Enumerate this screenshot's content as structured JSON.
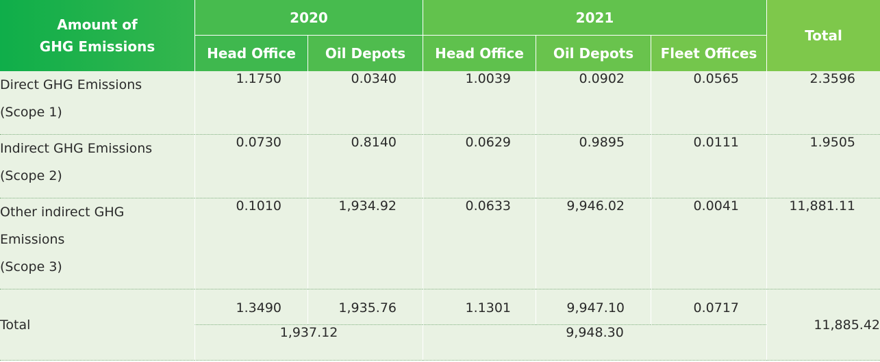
{
  "header": {
    "row_label": "Amount of\nGHG Emissions",
    "row_label_line1": "Amount of",
    "row_label_line2": "GHG Emissions",
    "year_2020": "2020",
    "year_2021": "2021",
    "total": "Total",
    "sub_2020": [
      "Head Office",
      "Oil Depots"
    ],
    "sub_2021": [
      "Head Office",
      "Oil Depots",
      "Fleet Offices"
    ]
  },
  "rows": [
    {
      "label_lines": [
        "Direct GHG Emissions",
        "(Scope 1)"
      ],
      "values": [
        "1.1750",
        "0.0340",
        "1.0039",
        "0.0902",
        "0.0565"
      ],
      "total": "2.3596"
    },
    {
      "label_lines": [
        "Indirect GHG Emissions",
        "(Scope 2)"
      ],
      "values": [
        "0.0730",
        "0.8140",
        "0.0629",
        "0.9895",
        "0.0111"
      ],
      "total": "1.9505"
    },
    {
      "label_lines": [
        "Other indirect GHG",
        "Emissions",
        "(Scope 3)"
      ],
      "values": [
        "0.1010",
        "1,934.92",
        "0.0633",
        "9,946.02",
        "0.0041"
      ],
      "total": "11,881.11"
    }
  ],
  "totals": {
    "label": "Total",
    "values": [
      "1.3490",
      "1,935.76",
      "1.1301",
      "9,947.10",
      "0.0717"
    ],
    "sum_2020": "1,937.12",
    "sum_2021": "9,948.30",
    "grand_total": "11,885.42"
  },
  "colors": {
    "header_start": "#0fae4a",
    "header_end": "#7ec84b",
    "body_bg": "#e9f2e3",
    "divider": "#7fb07f"
  }
}
